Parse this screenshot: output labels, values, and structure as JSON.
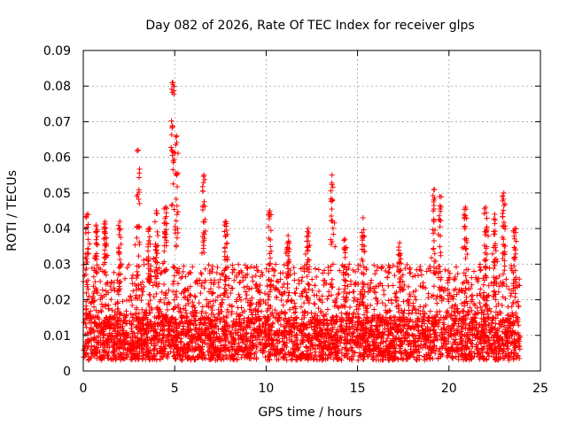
{
  "chart_data": {
    "type": "scatter",
    "title": "Day 082 of 2026, Rate Of TEC Index for receiver glps",
    "xlabel": "GPS time / hours",
    "ylabel": "ROTI / TECUs",
    "xlim": [
      0,
      25
    ],
    "ylim": [
      0,
      0.09
    ],
    "xticks": [
      "0",
      "5",
      "10",
      "15",
      "20",
      "25"
    ],
    "yticks": [
      "0",
      "0.01",
      "0.02",
      "0.03",
      "0.04",
      "0.05",
      "0.06",
      "0.07",
      "0.08",
      "0.09"
    ],
    "grid": true,
    "marker": "plus",
    "series": [
      {
        "name": "ROTI",
        "color": "#ff0000",
        "x_range": [
          0,
          23.9
        ],
        "baseline_range": [
          0.003,
          0.015
        ],
        "typical_max": 0.03,
        "peaks": [
          {
            "x": 0.2,
            "y": 0.044
          },
          {
            "x": 0.7,
            "y": 0.041
          },
          {
            "x": 1.2,
            "y": 0.042
          },
          {
            "x": 2.0,
            "y": 0.042
          },
          {
            "x": 3.0,
            "y": 0.062
          },
          {
            "x": 3.6,
            "y": 0.04
          },
          {
            "x": 4.0,
            "y": 0.045
          },
          {
            "x": 4.5,
            "y": 0.046
          },
          {
            "x": 4.9,
            "y": 0.081
          },
          {
            "x": 5.1,
            "y": 0.066
          },
          {
            "x": 6.6,
            "y": 0.055
          },
          {
            "x": 7.8,
            "y": 0.042
          },
          {
            "x": 10.2,
            "y": 0.045
          },
          {
            "x": 11.2,
            "y": 0.038
          },
          {
            "x": 12.3,
            "y": 0.04
          },
          {
            "x": 13.6,
            "y": 0.055
          },
          {
            "x": 14.3,
            "y": 0.037
          },
          {
            "x": 15.3,
            "y": 0.043
          },
          {
            "x": 17.3,
            "y": 0.036
          },
          {
            "x": 19.2,
            "y": 0.051
          },
          {
            "x": 19.5,
            "y": 0.049
          },
          {
            "x": 20.9,
            "y": 0.046
          },
          {
            "x": 22.0,
            "y": 0.046
          },
          {
            "x": 22.5,
            "y": 0.044
          },
          {
            "x": 23.0,
            "y": 0.05
          },
          {
            "x": 23.6,
            "y": 0.04
          }
        ]
      }
    ]
  }
}
